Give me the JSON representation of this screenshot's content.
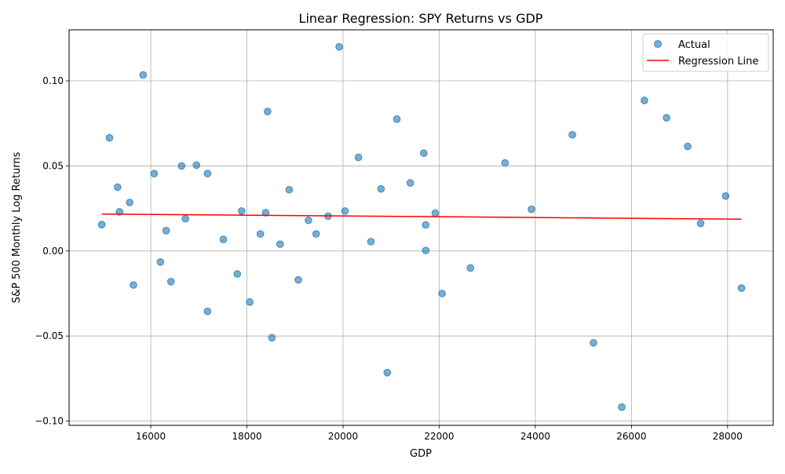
{
  "chart_data": {
    "type": "scatter",
    "title": "Linear Regression: SPY Returns vs GDP",
    "xlabel": "GDP",
    "ylabel": "S&P 500 Monthly Log Returns",
    "xlim": [
      14300,
      28950
    ],
    "ylim": [
      -0.1025,
      0.13
    ],
    "x_ticks": [
      16000,
      18000,
      20000,
      22000,
      24000,
      26000,
      28000
    ],
    "x_tick_labels": [
      "16000",
      "18000",
      "20000",
      "22000",
      "24000",
      "26000",
      "28000"
    ],
    "y_ticks": [
      -0.1,
      -0.05,
      0.0,
      0.05,
      0.1
    ],
    "y_tick_labels": [
      "−0.10",
      "−0.05",
      "0.00",
      "0.05",
      "0.10"
    ],
    "grid": true,
    "legend_position": "top-right",
    "series": [
      {
        "name": "Actual",
        "kind": "scatter",
        "color": "#1f77b4",
        "points": [
          [
            14980,
            0.0155
          ],
          [
            15140,
            0.0665
          ],
          [
            15310,
            0.0375
          ],
          [
            15350,
            0.023
          ],
          [
            15560,
            0.0285
          ],
          [
            15640,
            -0.02
          ],
          [
            15840,
            0.1035
          ],
          [
            16070,
            0.0455
          ],
          [
            16200,
            -0.0065
          ],
          [
            16320,
            0.012
          ],
          [
            16420,
            -0.018
          ],
          [
            16640,
            0.05
          ],
          [
            16720,
            0.019
          ],
          [
            16950,
            0.0505
          ],
          [
            17180,
            0.0455
          ],
          [
            17180,
            -0.0355
          ],
          [
            17510,
            0.0068
          ],
          [
            17800,
            -0.0135
          ],
          [
            17890,
            0.0235
          ],
          [
            18060,
            -0.03
          ],
          [
            18280,
            0.01
          ],
          [
            18390,
            0.0225
          ],
          [
            18430,
            0.082
          ],
          [
            18520,
            -0.051
          ],
          [
            18690,
            0.004
          ],
          [
            18880,
            0.036
          ],
          [
            19070,
            -0.017
          ],
          [
            19280,
            0.018
          ],
          [
            19440,
            0.01
          ],
          [
            19690,
            0.0205
          ],
          [
            19920,
            0.12
          ],
          [
            20040,
            0.0235
          ],
          [
            20320,
            0.055
          ],
          [
            20580,
            0.0055
          ],
          [
            20790,
            0.0365
          ],
          [
            20920,
            -0.0715
          ],
          [
            21120,
            0.0775
          ],
          [
            21400,
            0.04
          ],
          [
            21680,
            0.0575
          ],
          [
            21720,
            0.0153
          ],
          [
            21720,
            0.0003
          ],
          [
            21920,
            0.0222
          ],
          [
            22060,
            -0.025
          ],
          [
            22650,
            -0.01
          ],
          [
            23370,
            0.0518
          ],
          [
            23920,
            0.0245
          ],
          [
            24770,
            0.0683
          ],
          [
            25210,
            -0.054
          ],
          [
            25800,
            -0.0918
          ],
          [
            26270,
            0.0885
          ],
          [
            26730,
            0.0783
          ],
          [
            27170,
            0.0615
          ],
          [
            27440,
            0.0162
          ],
          [
            27960,
            0.0323
          ],
          [
            28290,
            -0.0218
          ]
        ]
      },
      {
        "name": "Regression Line",
        "kind": "line",
        "color": "#ff0000",
        "points": [
          [
            14980,
            0.0217
          ],
          [
            28290,
            0.0187
          ]
        ]
      }
    ]
  }
}
